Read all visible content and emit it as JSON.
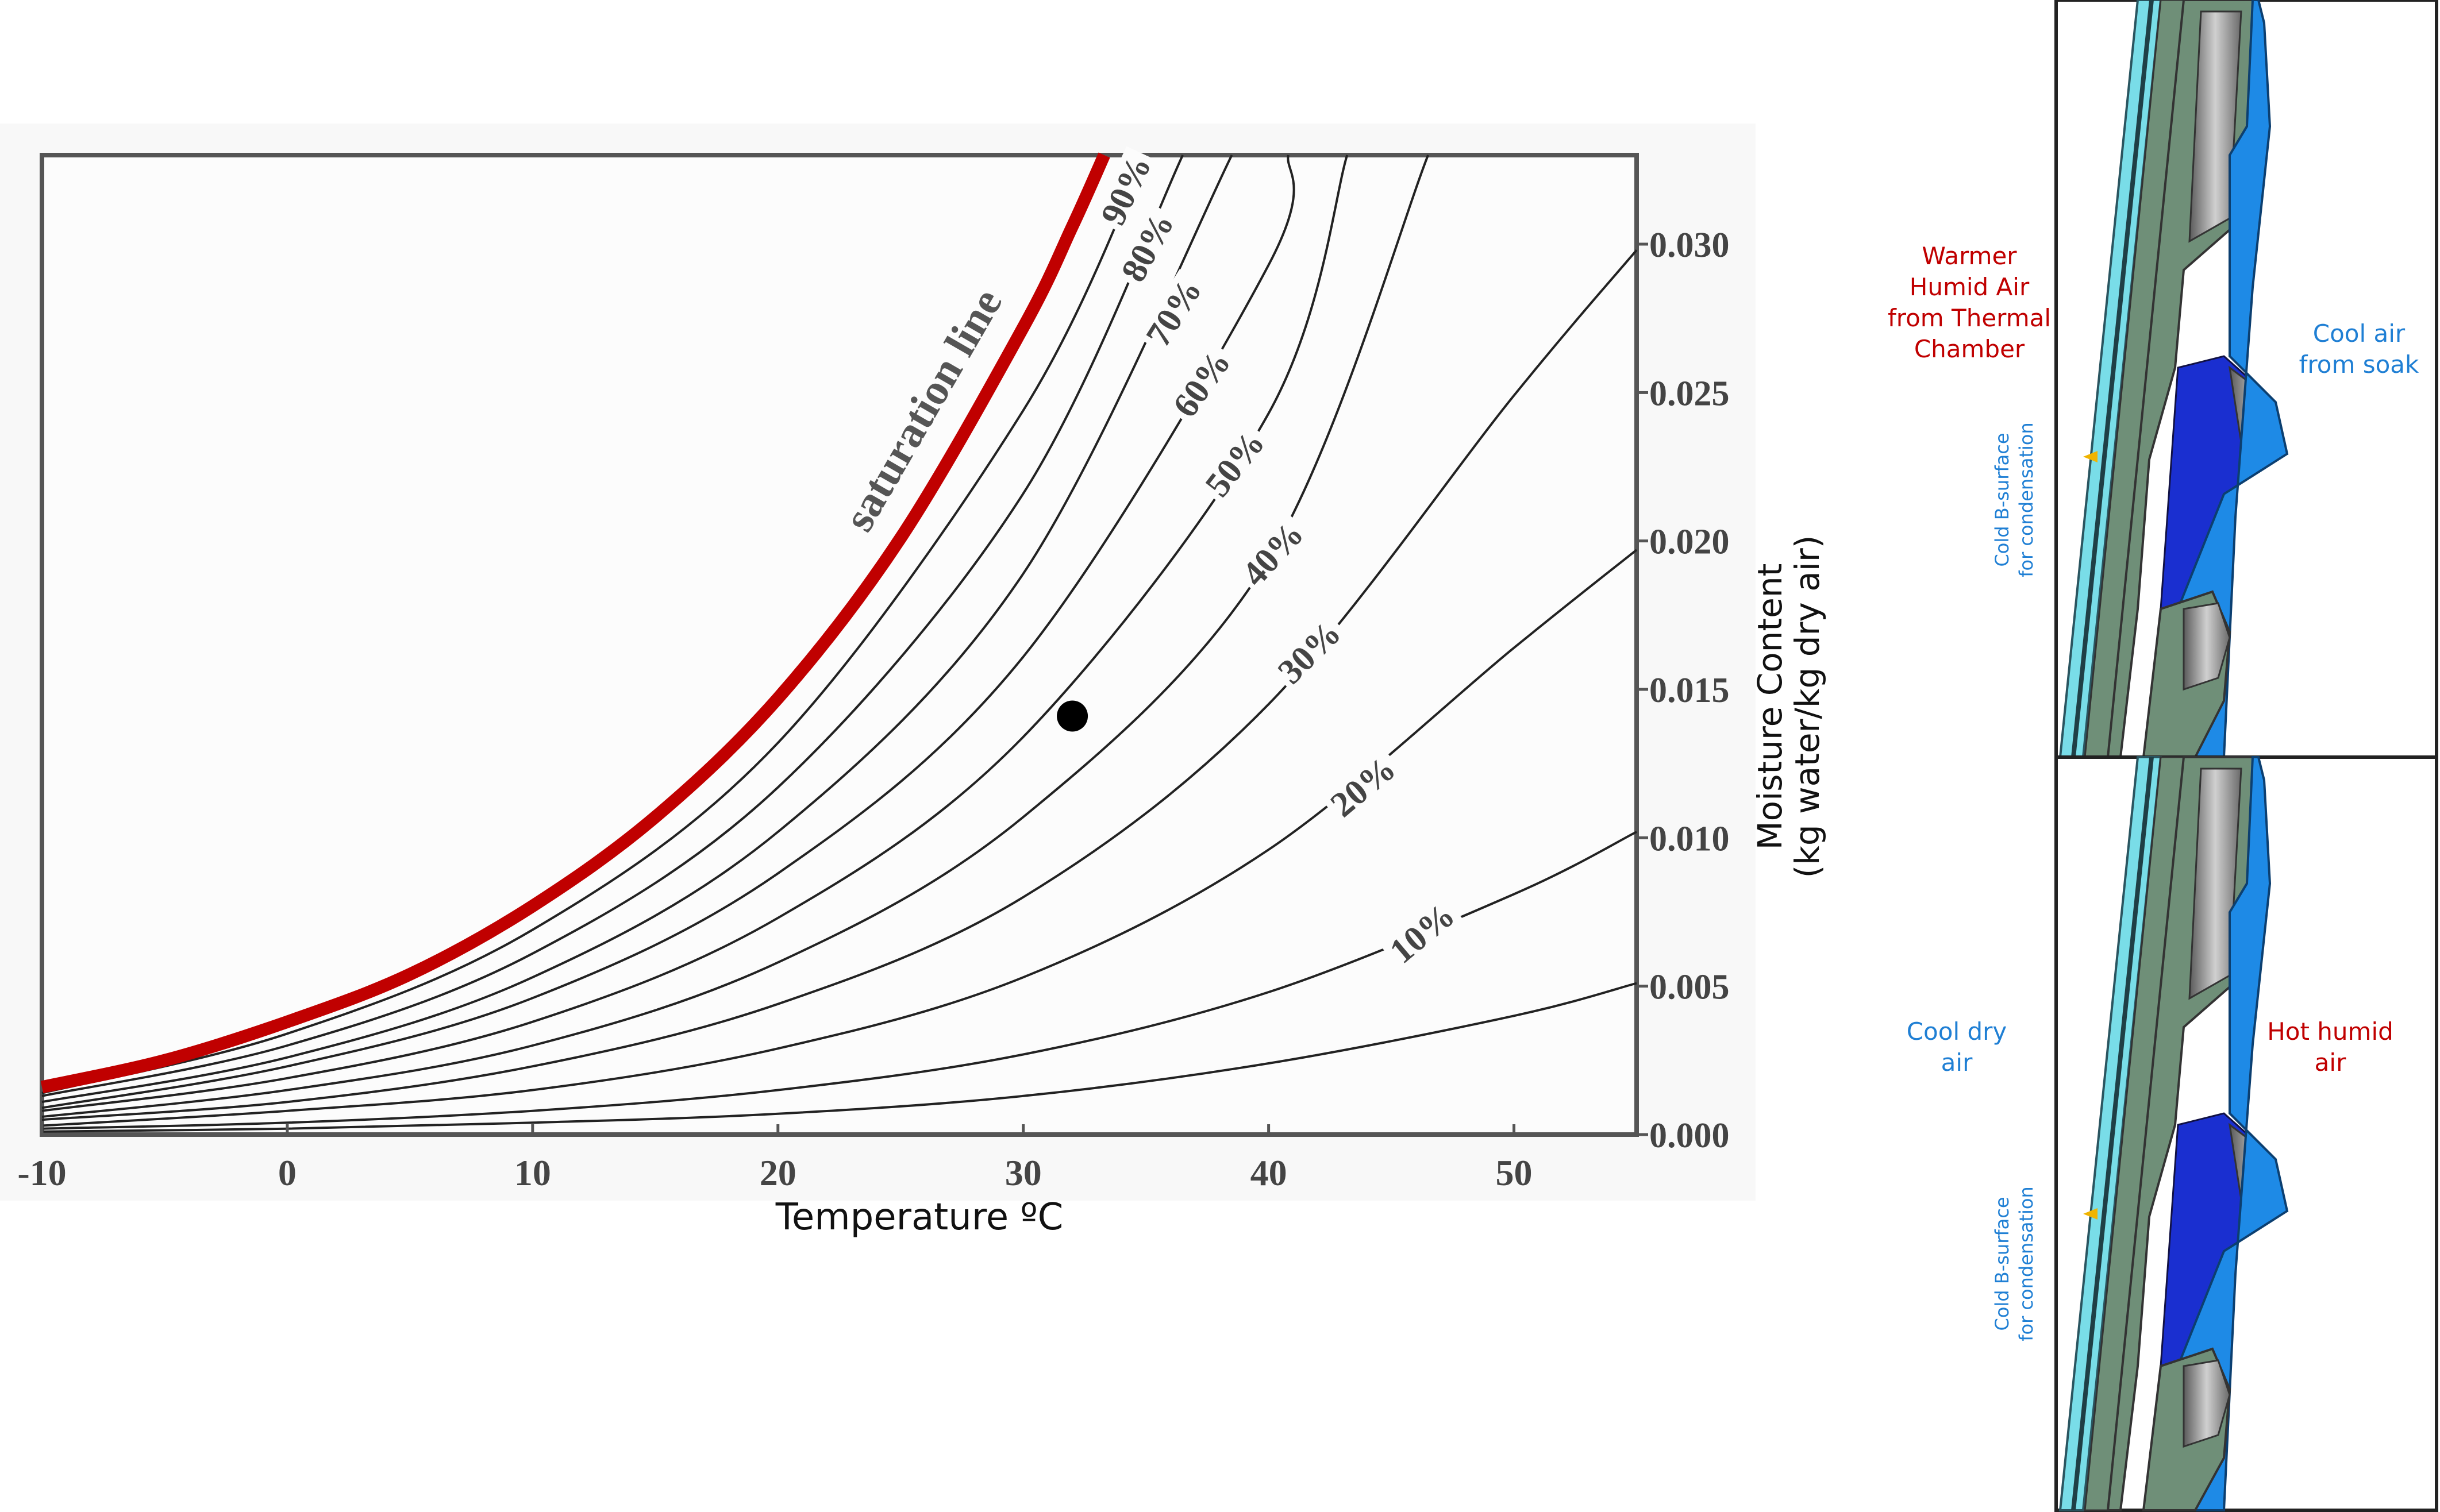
{
  "chart_data": {
    "type": "line",
    "title": "",
    "xlabel": "Temperature ºC",
    "ylabel_line1": "Moisture Content",
    "ylabel_line2": "(kg water/kg dry air)",
    "xlim": [
      -10,
      55
    ],
    "ylim": [
      0,
      0.033
    ],
    "x_ticks": [
      -10,
      0,
      10,
      20,
      30,
      40,
      50
    ],
    "x_tick_labels": [
      "-10",
      "0",
      "10",
      "20",
      "30",
      "40",
      "50"
    ],
    "y_ticks": [
      0.0,
      0.005,
      0.01,
      0.015,
      0.02,
      0.025,
      0.03
    ],
    "y_tick_labels": [
      "0.000",
      "0.005",
      "0.010",
      "0.015",
      "0.020",
      "0.025",
      "0.030"
    ],
    "y_axis_side": "right",
    "grid": false,
    "saturation_label": "saturation line",
    "curve_labels": [
      "10%",
      "20%",
      "30%",
      "40%",
      "50%",
      "60%",
      "70%",
      "80%",
      "90%"
    ],
    "series": [
      {
        "rh": 1.0,
        "color": "#c00000",
        "x": [
          -10,
          -5,
          0,
          5,
          10,
          15,
          20,
          25,
          30,
          32,
          33.3
        ],
        "y": [
          0.0016,
          0.0025,
          0.0038,
          0.0054,
          0.0077,
          0.0107,
          0.0147,
          0.0201,
          0.0272,
          0.0306,
          0.033
        ]
      },
      {
        "rh": 0.9,
        "x": [
          -10,
          0,
          10,
          20,
          30,
          35.0
        ],
        "y": [
          0.0014,
          0.0034,
          0.0069,
          0.0132,
          0.0244,
          0.033
        ]
      },
      {
        "rh": 0.8,
        "x": [
          -10,
          0,
          10,
          20,
          30,
          36.5
        ],
        "y": [
          0.0013,
          0.003,
          0.0061,
          0.0117,
          0.0216,
          0.033
        ]
      },
      {
        "rh": 0.7,
        "x": [
          -10,
          0,
          10,
          20,
          30,
          38.5
        ],
        "y": [
          0.0011,
          0.0026,
          0.0053,
          0.0102,
          0.0189,
          0.033
        ]
      },
      {
        "rh": 0.6,
        "x": [
          -10,
          0,
          10,
          20,
          30,
          40,
          40.8
        ],
        "y": [
          0.0009,
          0.0023,
          0.0046,
          0.0088,
          0.0161,
          0.0293,
          0.033
        ]
      },
      {
        "rh": 0.5,
        "x": [
          -10,
          0,
          10,
          20,
          30,
          40,
          43.2
        ],
        "y": [
          0.0008,
          0.0019,
          0.0038,
          0.0073,
          0.0134,
          0.0243,
          0.033
        ]
      },
      {
        "rh": 0.4,
        "x": [
          -10,
          0,
          10,
          20,
          30,
          40,
          46.5
        ],
        "y": [
          0.0006,
          0.0015,
          0.003,
          0.0058,
          0.0107,
          0.0194,
          0.033
        ]
      },
      {
        "rh": 0.3,
        "x": [
          -10,
          0,
          10,
          20,
          30,
          40,
          50,
          55
        ],
        "y": [
          0.0005,
          0.0011,
          0.0023,
          0.0044,
          0.008,
          0.0145,
          0.0249,
          0.0298
        ]
      },
      {
        "rh": 0.2,
        "x": [
          -10,
          0,
          10,
          20,
          30,
          40,
          50,
          55
        ],
        "y": [
          0.0003,
          0.0008,
          0.0015,
          0.0029,
          0.0053,
          0.0096,
          0.0164,
          0.0197
        ]
      },
      {
        "rh": 0.1,
        "x": [
          -10,
          0,
          10,
          20,
          30,
          40,
          50,
          55
        ],
        "y": [
          0.0002,
          0.0004,
          0.0008,
          0.0015,
          0.0027,
          0.0048,
          0.0081,
          0.0102
        ]
      },
      {
        "rh": 0.05,
        "x": [
          -10,
          0,
          10,
          20,
          30,
          40,
          50,
          55
        ],
        "y": [
          0.0001,
          0.0002,
          0.0004,
          0.0007,
          0.0013,
          0.0024,
          0.004,
          0.0051
        ]
      }
    ],
    "marked_point": {
      "x": 32,
      "y": 0.0141
    }
  },
  "diagrams": {
    "top": {
      "label_left_lines": [
        "Warmer",
        "Humid Air",
        "from Thermal",
        "Chamber"
      ],
      "label_right_lines": [
        "Cool air",
        "from soak"
      ],
      "surface_label_lines": [
        "Cold B-surface",
        "for condensation"
      ]
    },
    "bottom": {
      "label_left_lines": [
        "Cool dry",
        "air"
      ],
      "label_right_lines": [
        "Hot humid",
        "air"
      ],
      "surface_label_lines": [
        "Cold B-surface",
        "for condensation"
      ]
    }
  },
  "colors": {
    "warm_text": "#c00000",
    "cool_text": "#1f7fd4",
    "saturation_line": "#c00000",
    "curve": "#222222",
    "chart_background": "#f8f8f8",
    "frame": "#555555",
    "part_green": "#6f8f78",
    "glass_cyan": "#79dde8",
    "part_blue": "#1e8ae6",
    "part_darkblue": "#1a2fd0",
    "marker": "#000000"
  }
}
